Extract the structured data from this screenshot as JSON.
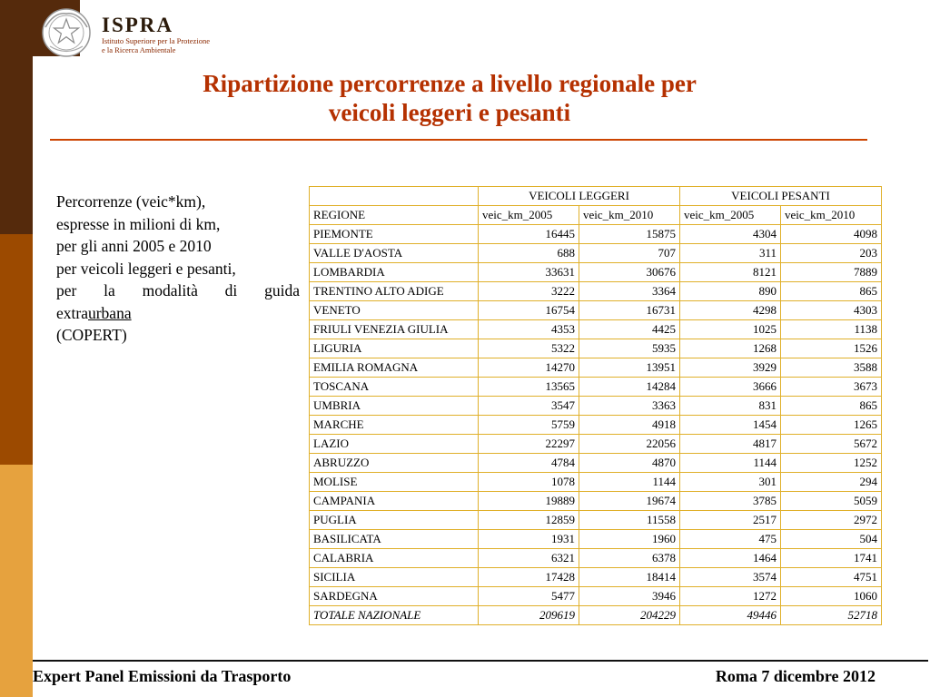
{
  "logo": {
    "name": "ISPRA",
    "subtitle_line1": "Istituto Superiore per la Protezione",
    "subtitle_line2": "e la Ricerca Ambientale"
  },
  "title": {
    "line1": "Ripartizione percorrenze a livello regionale per",
    "line2": "veicoli leggeri e pesanti"
  },
  "note": {
    "line1": "Percorrenze (veic*km),",
    "line2": "espresse in milioni di km,",
    "line3": "per gli anni 2005 e 2010",
    "line4": "per veicoli leggeri e pesanti,",
    "line5": "per la modalità di guida",
    "line6_prefix": "extra",
    "line6_underlined": "urbana",
    "line7": "(COPERT)"
  },
  "table": {
    "group_headers": [
      "VEICOLI LEGGERI",
      "VEICOLI PESANTI"
    ],
    "columns": [
      "REGIONE",
      "veic_km_2005",
      "veic_km_2010",
      "veic_km_2005",
      "veic_km_2010"
    ],
    "rows": [
      [
        "PIEMONTE",
        16445,
        15875,
        4304,
        4098
      ],
      [
        "VALLE D'AOSTA",
        688,
        707,
        311,
        203
      ],
      [
        "LOMBARDIA",
        33631,
        30676,
        8121,
        7889
      ],
      [
        "TRENTINO ALTO ADIGE",
        3222,
        3364,
        890,
        865
      ],
      [
        "VENETO",
        16754,
        16731,
        4298,
        4303
      ],
      [
        "FRIULI VENEZIA GIULIA",
        4353,
        4425,
        1025,
        1138
      ],
      [
        "LIGURIA",
        5322,
        5935,
        1268,
        1526
      ],
      [
        "EMILIA ROMAGNA",
        14270,
        13951,
        3929,
        3588
      ],
      [
        "TOSCANA",
        13565,
        14284,
        3666,
        3673
      ],
      [
        "UMBRIA",
        3547,
        3363,
        831,
        865
      ],
      [
        "MARCHE",
        5759,
        4918,
        1454,
        1265
      ],
      [
        "LAZIO",
        22297,
        22056,
        4817,
        5672
      ],
      [
        "ABRUZZO",
        4784,
        4870,
        1144,
        1252
      ],
      [
        "MOLISE",
        1078,
        1144,
        301,
        294
      ],
      [
        "CAMPANIA",
        19889,
        19674,
        3785,
        5059
      ],
      [
        "PUGLIA",
        12859,
        11558,
        2517,
        2972
      ],
      [
        "BASILICATA",
        1931,
        1960,
        475,
        504
      ],
      [
        "CALABRIA",
        6321,
        6378,
        1464,
        1741
      ],
      [
        "SICILIA",
        17428,
        18414,
        3574,
        4751
      ],
      [
        "SARDEGNA",
        5477,
        3946,
        1272,
        1060
      ]
    ],
    "total_row": [
      "TOTALE NAZIONALE",
      209619,
      204229,
      49446,
      52718
    ]
  },
  "footer": {
    "left": "Expert Panel Emissioni da Trasporto",
    "right": "Roma 7 dicembre 2012"
  },
  "colors": {
    "title": "#b53101",
    "title_rule": "#cc4400",
    "table_border": "#e0b02a",
    "stripe_dark": "#552a0c",
    "stripe_mid": "#9c4a00",
    "stripe_orange": "#e6a23e"
  }
}
